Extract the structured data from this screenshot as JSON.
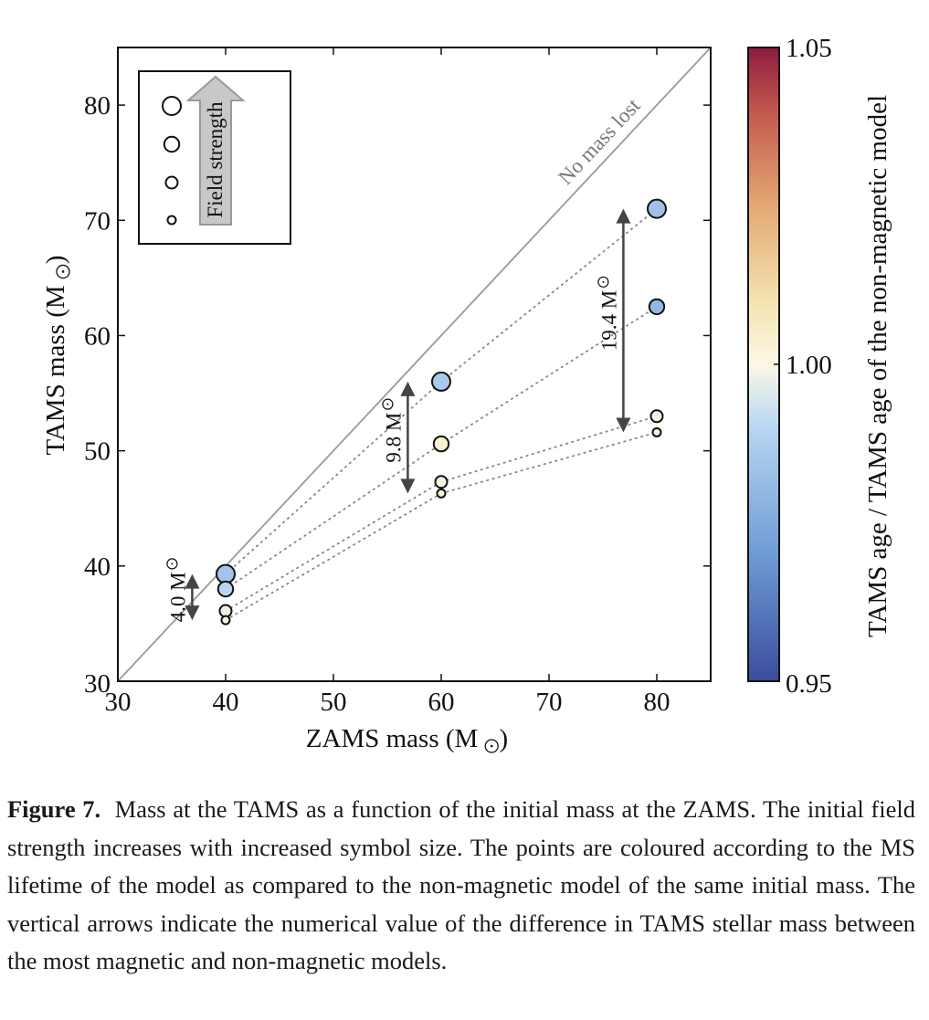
{
  "chart_data": {
    "type": "scatter",
    "xlabel": "ZAMS mass (M",
    "ylabel": "TAMS mass (M",
    "unit_symbol": "⊙",
    "xlim": [
      30,
      85
    ],
    "ylim": [
      30,
      85
    ],
    "xticks": [
      30,
      40,
      50,
      60,
      70,
      80
    ],
    "yticks": [
      30,
      40,
      50,
      60,
      70,
      80
    ],
    "reference_line": {
      "label": "No mass lost",
      "x": [
        30,
        85
      ],
      "y": [
        30,
        85
      ],
      "color": "#999999"
    },
    "series": [
      {
        "name": "ZAMS 40",
        "x": 40,
        "points": [
          {
            "y": 39.3,
            "field_rank": 4,
            "color_value": 0.984
          },
          {
            "y": 38.0,
            "field_rank": 3,
            "color_value": 0.99
          },
          {
            "y": 36.1,
            "field_rank": 2,
            "color_value": 0.998
          },
          {
            "y": 35.3,
            "field_rank": 1,
            "color_value": 1.003
          }
        ]
      },
      {
        "name": "ZAMS 60",
        "x": 60,
        "points": [
          {
            "y": 56.0,
            "field_rank": 4,
            "color_value": 0.986
          },
          {
            "y": 50.6,
            "field_rank": 3,
            "color_value": 1.004
          },
          {
            "y": 47.3,
            "field_rank": 2,
            "color_value": 0.999
          },
          {
            "y": 46.3,
            "field_rank": 1,
            "color_value": 1.003
          }
        ]
      },
      {
        "name": "ZAMS 80",
        "x": 80,
        "points": [
          {
            "y": 71.0,
            "field_rank": 4,
            "color_value": 0.983
          },
          {
            "y": 62.5,
            "field_rank": 3,
            "color_value": 0.98
          },
          {
            "y": 53.0,
            "field_rank": 2,
            "color_value": 0.999
          },
          {
            "y": 51.6,
            "field_rank": 1,
            "color_value": 1.004
          }
        ]
      }
    ],
    "arrows": [
      {
        "x": 36.9,
        "y_top": 39.3,
        "y_bottom": 35.3,
        "label": "4.0 M"
      },
      {
        "x": 56.9,
        "y_top": 56.0,
        "y_bottom": 46.3,
        "label": "9.8 M"
      },
      {
        "x": 76.9,
        "y_top": 71.0,
        "y_bottom": 51.6,
        "label": "19.4 M"
      }
    ],
    "legend": {
      "placement": "top-left",
      "arrow_label": "Field strength",
      "sizes": 4
    },
    "colorbar": {
      "label": "TAMS age / TAMS age of the non-magnetic model",
      "min": 0.95,
      "max": 1.05,
      "ticks": [
        "0.95",
        "1.00",
        "1.05"
      ],
      "stops": [
        {
          "v": 0.95,
          "color": "#3b4c9c"
        },
        {
          "v": 0.97,
          "color": "#6e9bd4"
        },
        {
          "v": 0.99,
          "color": "#b8d6f2"
        },
        {
          "v": 1.0,
          "color": "#fbf8e6"
        },
        {
          "v": 1.01,
          "color": "#f3e3b0"
        },
        {
          "v": 1.025,
          "color": "#e3a872"
        },
        {
          "v": 1.04,
          "color": "#c3574f"
        },
        {
          "v": 1.05,
          "color": "#8e1b3e"
        }
      ]
    }
  },
  "caption": {
    "label": "Figure 7.",
    "text": "Mass at the TAMS as a function of the initial mass at the ZAMS. The initial field strength increases with increased symbol size. The points are coloured according to the MS lifetime of the model as compared to the non-magnetic model of the same initial mass. The vertical arrows indicate the numerical value of the difference in TAMS stellar mass between the most magnetic and non-magnetic models."
  }
}
